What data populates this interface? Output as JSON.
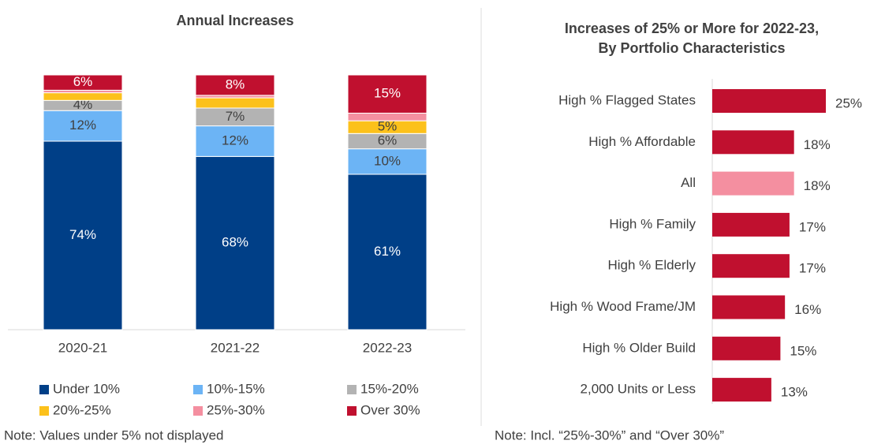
{
  "chart_data": [
    {
      "type": "stacked_bar",
      "title": "Annual Increases",
      "categories": [
        "2020-21",
        "2021-22",
        "2022-23"
      ],
      "series": [
        {
          "name": "Under 10%",
          "color": "#003f87",
          "values": [
            74,
            68,
            61
          ],
          "value_labels": [
            "74%",
            "68%",
            "61%"
          ]
        },
        {
          "name": "10%-15%",
          "color": "#6cb4f5",
          "values": [
            12,
            12,
            10
          ],
          "value_labels": [
            "12%",
            "12%",
            "10%"
          ]
        },
        {
          "name": "15%-20%",
          "color": "#b3b3b3",
          "values": [
            4,
            7,
            6
          ],
          "value_labels": [
            "4%",
            "7%",
            "6%"
          ]
        },
        {
          "name": "20%-25%",
          "color": "#fcc11b",
          "values": [
            3,
            4,
            5
          ],
          "value_labels": [
            null,
            null,
            "5%"
          ]
        },
        {
          "name": "25%-30%",
          "color": "#f48fa0",
          "values": [
            1,
            1,
            3
          ],
          "value_labels": [
            null,
            null,
            null
          ]
        },
        {
          "name": "Over 30%",
          "color": "#c0102f",
          "values": [
            6,
            8,
            15
          ],
          "value_labels": [
            "6%",
            "8%",
            "15%"
          ]
        }
      ],
      "ylim": [
        0,
        100
      ],
      "note": "Note: Values under 5% not displayed"
    },
    {
      "type": "hbar",
      "title": [
        "Increases of 25% or More for 2022-23,",
        "By Portfolio Characteristics"
      ],
      "categories": [
        "High % Flagged States",
        "High % Affordable",
        "All",
        "High % Family",
        "High % Elderly",
        "High % Wood Frame/JM",
        "High % Older Build",
        "2,000 Units or Less"
      ],
      "values": [
        25,
        18,
        18,
        17,
        17,
        16,
        15,
        13
      ],
      "value_labels": [
        "25%",
        "18%",
        "18%",
        "17%",
        "17%",
        "16%",
        "15%",
        "13%"
      ],
      "colors": [
        "#c0102f",
        "#c0102f",
        "#f48fa0",
        "#c0102f",
        "#c0102f",
        "#c0102f",
        "#c0102f",
        "#c0102f"
      ],
      "note": "Note: Incl. “25%-30%” and “Over 30%”"
    }
  ]
}
